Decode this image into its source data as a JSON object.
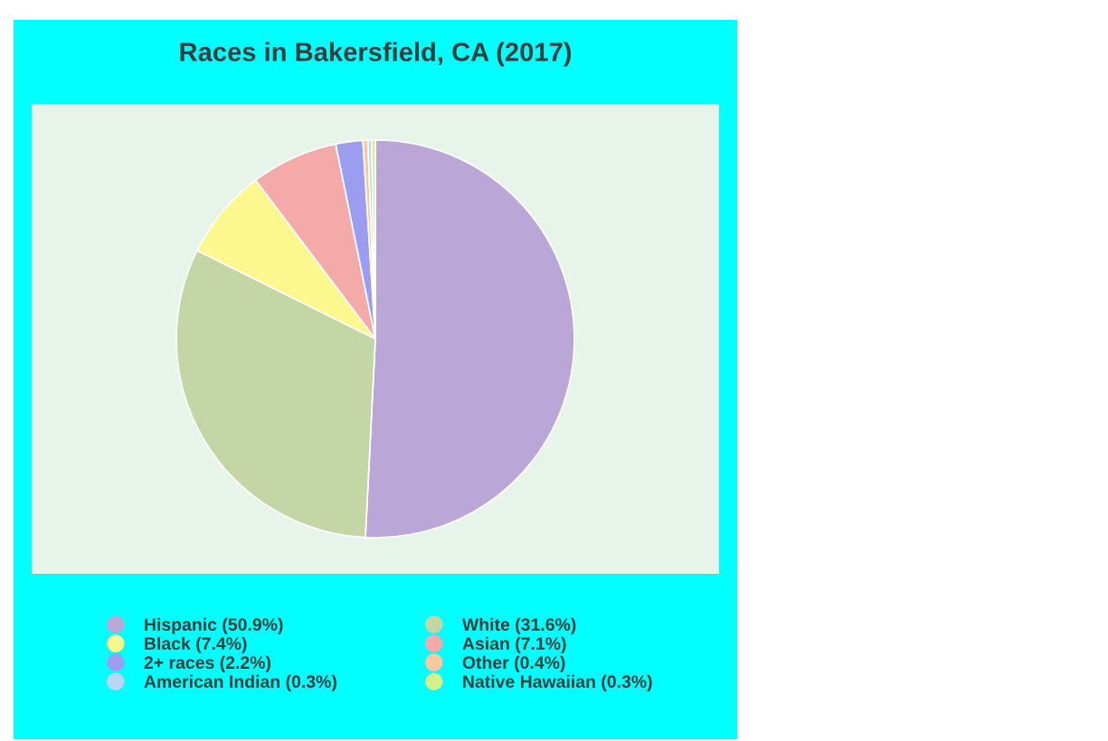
{
  "chart_data": {
    "type": "pie",
    "title": "Races in Bakersfield, CA (2017)",
    "categories": [
      "Hispanic (50.9%)",
      "White (31.6%)",
      "Black (7.4%)",
      "Asian (7.1%)",
      "2+ races (2.2%)",
      "Other (0.4%)",
      "American Indian (0.3%)",
      "Native Hawaiian (0.3%)"
    ],
    "values": [
      50.9,
      31.6,
      7.4,
      7.1,
      2.2,
      0.4,
      0.3,
      0.3
    ],
    "colors": [
      "#bba6d8",
      "#c5d6a6",
      "#fdf88e",
      "#f4aaa8",
      "#9c9cf0",
      "#f8c8a0",
      "#bcd4f5",
      "#d4f08a"
    ],
    "legend": "bottom"
  }
}
